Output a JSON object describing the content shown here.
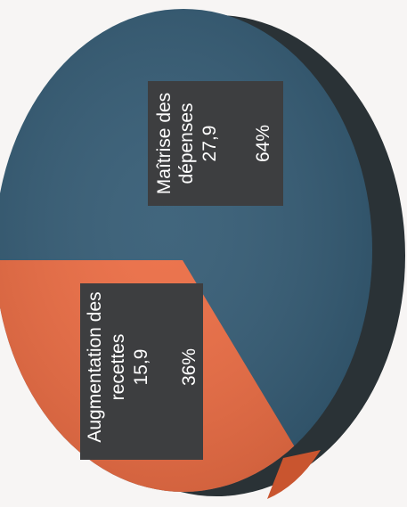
{
  "chart_data": {
    "type": "pie",
    "orientation": "rotated 90° counter-clockwise (labels read bottom-to-top)",
    "three_d": true,
    "slices": [
      {
        "name_lines": [
          "Maîtrise des",
          "dépenses"
        ],
        "value": "27,9",
        "percent": "64%",
        "value_num": 27.9,
        "percent_num": 64,
        "color": "#355c75",
        "side_color": "#2a3236"
      },
      {
        "name_lines": [
          "Augmentation des",
          "recettes"
        ],
        "value": "15,9",
        "percent": "36%",
        "value_num": 15.9,
        "percent_num": 36,
        "color": "#ec6d44",
        "side_color": "#c9552f"
      }
    ],
    "label_box_color": "#3d3e40"
  }
}
